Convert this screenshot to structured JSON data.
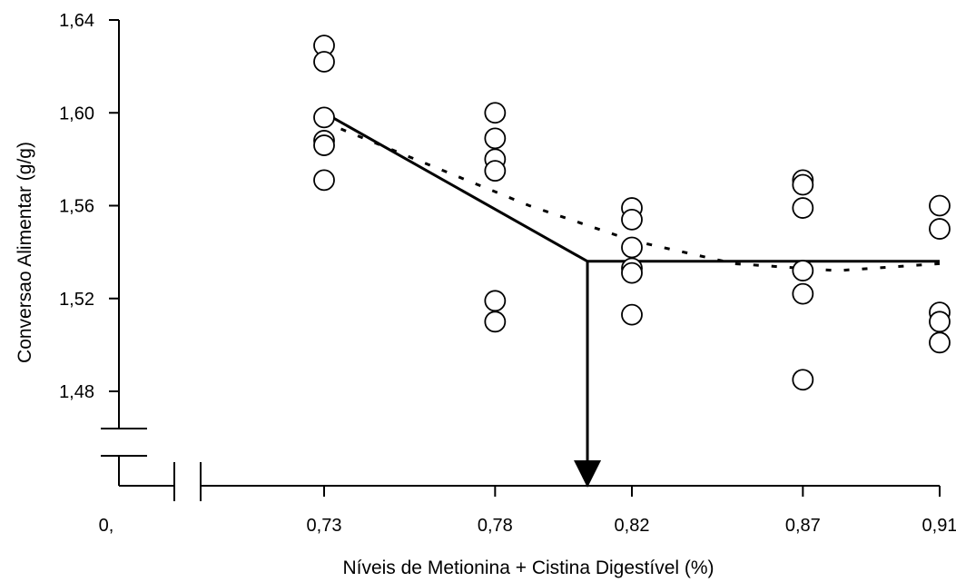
{
  "chart_data": {
    "type": "scatter",
    "title": "",
    "xlabel": "Níveis de Metionina + Cistina Digestível (%)",
    "ylabel": "Conversao Alimentar (g/g)",
    "ylim": [
      1.44,
      1.64
    ],
    "yticks": [
      "1,64",
      "1,60",
      "1,56",
      "1,52",
      "1,48"
    ],
    "xticks": [
      {
        "label": "0,",
        "x": 0.67
      },
      {
        "label": "0,73",
        "x": 0.73
      },
      {
        "label": "0,78",
        "x": 0.78
      },
      {
        "label": "0,82",
        "x": 0.82
      },
      {
        "label": "0,87",
        "x": 0.87
      },
      {
        "label": "0,91",
        "x": 0.91
      }
    ],
    "grid": false,
    "points": [
      {
        "x": 0.73,
        "y": 1.629
      },
      {
        "x": 0.73,
        "y": 1.622
      },
      {
        "x": 0.73,
        "y": 1.598
      },
      {
        "x": 0.73,
        "y": 1.588
      },
      {
        "x": 0.73,
        "y": 1.586
      },
      {
        "x": 0.73,
        "y": 1.571
      },
      {
        "x": 0.78,
        "y": 1.6
      },
      {
        "x": 0.78,
        "y": 1.589
      },
      {
        "x": 0.78,
        "y": 1.58
      },
      {
        "x": 0.78,
        "y": 1.575
      },
      {
        "x": 0.78,
        "y": 1.519
      },
      {
        "x": 0.78,
        "y": 1.51
      },
      {
        "x": 0.82,
        "y": 1.559
      },
      {
        "x": 0.82,
        "y": 1.554
      },
      {
        "x": 0.82,
        "y": 1.542
      },
      {
        "x": 0.82,
        "y": 1.533
      },
      {
        "x": 0.82,
        "y": 1.531
      },
      {
        "x": 0.82,
        "y": 1.513
      },
      {
        "x": 0.87,
        "y": 1.571
      },
      {
        "x": 0.87,
        "y": 1.569
      },
      {
        "x": 0.87,
        "y": 1.559
      },
      {
        "x": 0.87,
        "y": 1.532
      },
      {
        "x": 0.87,
        "y": 1.522
      },
      {
        "x": 0.87,
        "y": 1.485
      },
      {
        "x": 0.91,
        "y": 1.56
      },
      {
        "x": 0.91,
        "y": 1.55
      },
      {
        "x": 0.91,
        "y": 1.514
      },
      {
        "x": 0.91,
        "y": 1.51
      },
      {
        "x": 0.91,
        "y": 1.501
      }
    ],
    "fits": [
      {
        "style": "solid",
        "points": [
          [
            0.73,
            1.6
          ],
          [
            0.807,
            1.536
          ],
          [
            0.91,
            1.536
          ]
        ]
      },
      {
        "style": "dashed",
        "points": [
          [
            0.73,
            1.596
          ],
          [
            0.76,
            1.578
          ],
          [
            0.79,
            1.56
          ],
          [
            0.82,
            1.545
          ],
          [
            0.85,
            1.535
          ],
          [
            0.88,
            1.532
          ],
          [
            0.91,
            1.535
          ]
        ]
      }
    ],
    "break_point_x": 0.807
  }
}
